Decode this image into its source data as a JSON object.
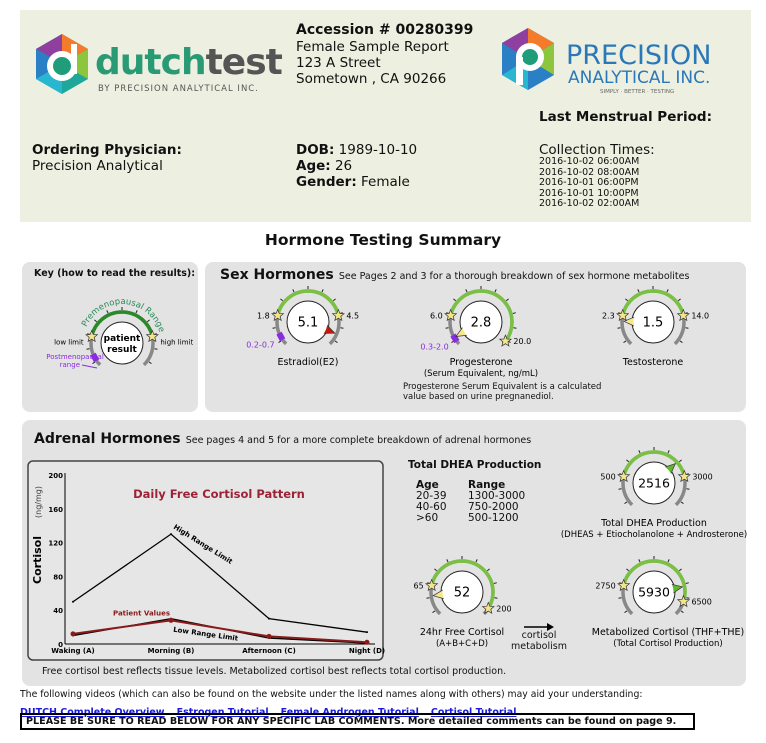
{
  "header": {
    "logo_left": {
      "name": "dutchtest",
      "tagline": "BY PRECISION ANALYTICAL INC."
    },
    "logo_right": {
      "name": "PRECISION",
      "name2": "ANALYTICAL INC.",
      "tagline": "SIMPLY · BETTER · TESTING"
    },
    "accession": "Accession # 00280399",
    "report_type": "Female Sample Report",
    "address1": "123 A Street",
    "address2": "Sometown , CA 90266",
    "last_menstrual_label": "Last Menstrual Period:",
    "physician_label": "Ordering Physician:",
    "physician": "Precision Analytical",
    "dob_label": "DOB:",
    "dob": "1989-10-10",
    "age_label": "Age:",
    "age": "26",
    "gender_label": "Gender:",
    "gender": "Female",
    "collection_label": "Collection Times:",
    "collection_times": [
      "2016-10-02 06:00AM",
      "2016-10-02 08:00AM",
      "2016-10-01 06:00PM",
      "2016-10-01 10:00PM",
      "2016-10-02 02:00AM"
    ]
  },
  "title": "Hormone Testing Summary",
  "key": {
    "title": "Key (how to read the results):",
    "arc_label": "Premenopausal Range",
    "low": "low limit",
    "high": "high limit",
    "center1": "patient",
    "center2": "result",
    "post1": "Postmenopausal",
    "post2": "range"
  },
  "sex": {
    "title": "Sex Hormones",
    "subtitle": "See Pages 2 and 3 for a thorough breakdown of sex hormone metabolites",
    "note1": "Progesterone Serum Equivalent is a calculated",
    "note2": "value based on urine pregnanediol."
  },
  "gauges": {
    "estradiol": {
      "value": "5.1",
      "low": "1.8",
      "high": "4.5",
      "post": "0.2-0.7",
      "label": "Estradiol(E2)",
      "status": "high"
    },
    "progesterone": {
      "value": "2.8",
      "low": "6.0",
      "high": "20.0",
      "post": "0.3-2.0",
      "label": "Progesterone",
      "label2": "(Serum Equivalent, ng/mL)",
      "status": "low"
    },
    "testosterone": {
      "value": "1.5",
      "low": "2.3",
      "high": "14.0",
      "label": "Testosterone",
      "status": "low"
    },
    "dhea": {
      "value": "2516",
      "low": "500",
      "high": "3000",
      "label": "Total DHEA Production",
      "label2": "(DHEAS + Etiocholanolone + Androsterone)",
      "status": "normal"
    },
    "free_cortisol": {
      "value": "52",
      "low": "65",
      "high": "200",
      "label": "24hr Free Cortisol",
      "label2": "(A+B+C+D)",
      "status": "low"
    },
    "metab_cortisol": {
      "value": "5930",
      "low": "2750",
      "high": "6500",
      "label": "Metabolized Cortisol (THF+THE)",
      "label2": "(Total Cortisol Production)",
      "status": "normal"
    }
  },
  "adrenal": {
    "title": "Adrenal Hormones",
    "subtitle": "See pages 4 and 5 for a more complete breakdown of adrenal hormones",
    "dhea_title": "Total DHEA Production",
    "age_head": "Age",
    "range_head": "Range",
    "age_rows": [
      [
        "20-39",
        "1300-3000"
      ],
      [
        "40-60",
        "750-2000"
      ],
      [
        ">60",
        "500-1200"
      ]
    ],
    "arrow1": "cortisol",
    "arrow2": "metabolism",
    "caption": "Free cortisol best reflects tissue levels. Metabolized cortisol best reflects total cortisol production."
  },
  "chart_data": {
    "type": "line",
    "title": "Daily Free Cortisol Pattern",
    "ylabel": "Cortisol",
    "yunit": "(ng/mg)",
    "categories": [
      "Waking (A)",
      "Morning (B)",
      "Afternoon (C)",
      "Night (D)"
    ],
    "ylim": [
      0,
      200
    ],
    "yticks": [
      0,
      40,
      80,
      120,
      160,
      200
    ],
    "series": [
      {
        "name": "High Range Limit",
        "values": [
          50,
          130,
          30,
          14
        ],
        "color": "#000000"
      },
      {
        "name": "Low Range Limit",
        "values": [
          10,
          30,
          7,
          1
        ],
        "color": "#000000"
      },
      {
        "name": "Patient Values",
        "values": [
          12,
          28,
          9,
          2
        ],
        "color": "#8b1a1a"
      }
    ]
  },
  "footer": {
    "intro": "The following videos (which can also be found on the website under the listed names along with others) may aid your understanding:",
    "links": [
      "DUTCH Complete Overview",
      "Estrogen Tutorial",
      "Female Androgen Tutorial",
      "Cortisol Tutorial"
    ],
    "notice": "PLEASE BE SURE TO READ BELOW FOR ANY SPECIFIC LAB COMMENTS. More detailed comments can be found on page 9."
  },
  "colors": {
    "header_bg": "#edf0e0",
    "panel_bg": "#e3e3e3",
    "range_green": "#7ac143",
    "postmeno_purple": "#8a2be2",
    "high_marker": "#c0190f",
    "normal_marker": "#5cb82e",
    "low_marker": "#f5e88a",
    "title_red": "#9b2335"
  }
}
